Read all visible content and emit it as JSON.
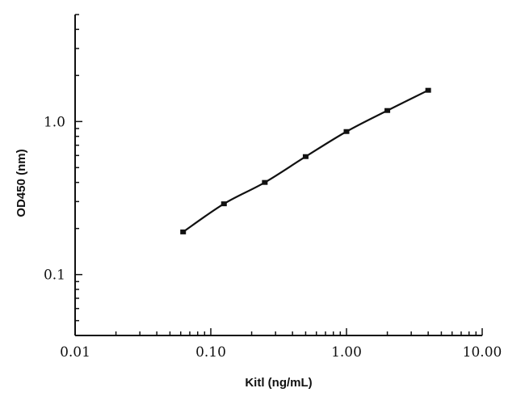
{
  "chart_data": {
    "type": "line",
    "xlabel": "Kitl (ng/mL)",
    "ylabel": "OD450 (nm)",
    "x_scale": "log",
    "y_scale": "log",
    "xlim": [
      0.01,
      10
    ],
    "ylim": [
      0.04,
      5
    ],
    "x_ticks": [
      {
        "value": 0.01,
        "label": "0.01"
      },
      {
        "value": 0.1,
        "label": "0.10"
      },
      {
        "value": 1,
        "label": "1.00"
      },
      {
        "value": 10,
        "label": "10.00"
      }
    ],
    "y_ticks": [
      {
        "value": 0.1,
        "label": "0.1"
      },
      {
        "value": 1,
        "label": "1.0"
      }
    ],
    "grid": false,
    "series": [
      {
        "x": [
          0.0625,
          0.125,
          0.25,
          0.5,
          1,
          2,
          4
        ],
        "y": [
          0.19,
          0.29,
          0.4,
          0.59,
          0.86,
          1.18,
          1.6
        ]
      }
    ],
    "colors": {
      "line": "#111111",
      "axes": "#111111"
    }
  }
}
